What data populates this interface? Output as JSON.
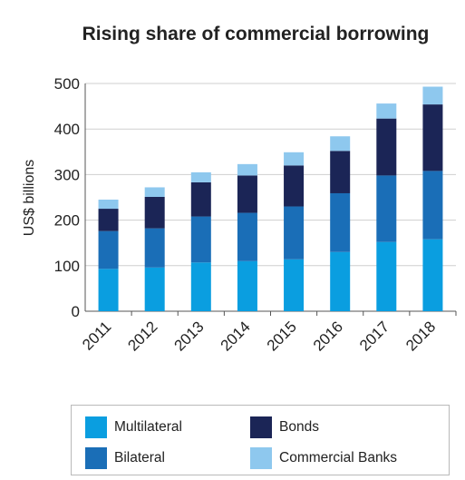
{
  "chart_data": {
    "type": "bar",
    "stacked": true,
    "title": "Rising share of commercial borrowing",
    "xlabel": "",
    "ylabel": "US$ billions",
    "ylim": [
      0,
      500
    ],
    "yticks": [
      0,
      100,
      200,
      300,
      400,
      500
    ],
    "grid": true,
    "legend_position": "bottom",
    "categories": [
      "2011",
      "2012",
      "2013",
      "2014",
      "2015",
      "2016",
      "2017",
      "2018"
    ],
    "series": [
      {
        "name": "Multilateral",
        "color": "#0a9ee0",
        "values": [
          93,
          96,
          107,
          110,
          114,
          130,
          152,
          158
        ]
      },
      {
        "name": "Bilateral",
        "color": "#1a6eb7",
        "values": [
          83,
          86,
          101,
          106,
          116,
          129,
          146,
          150
        ]
      },
      {
        "name": "Bonds",
        "color": "#1b2556",
        "values": [
          49,
          69,
          75,
          82,
          90,
          93,
          125,
          146
        ]
      },
      {
        "name": "Commercial Banks",
        "color": "#8ec8ee",
        "values": [
          20,
          21,
          22,
          25,
          29,
          32,
          33,
          39
        ]
      }
    ]
  },
  "colors": {
    "grid": "#cfcfcf",
    "axis": "#555555",
    "text": "#222222"
  }
}
